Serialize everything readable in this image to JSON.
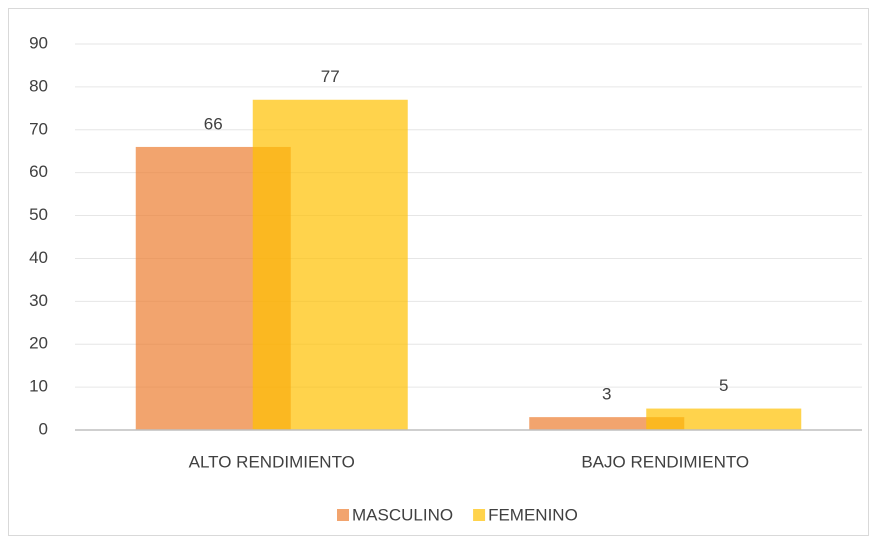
{
  "chart_data": {
    "type": "bar",
    "categories": [
      "ALTO RENDIMIENTO",
      "BAJO RENDIMIENTO"
    ],
    "series": [
      {
        "name": "MASCULINO",
        "color": "#ED7D31",
        "values": [
          66,
          3
        ]
      },
      {
        "name": "FEMENINO",
        "color": "#FFC000",
        "values": [
          77,
          5
        ]
      }
    ],
    "ylim": [
      0,
      90
    ],
    "yticks": [
      0,
      10,
      20,
      30,
      40,
      50,
      60,
      70,
      80,
      90
    ],
    "grid": true,
    "legend": "bottom"
  }
}
